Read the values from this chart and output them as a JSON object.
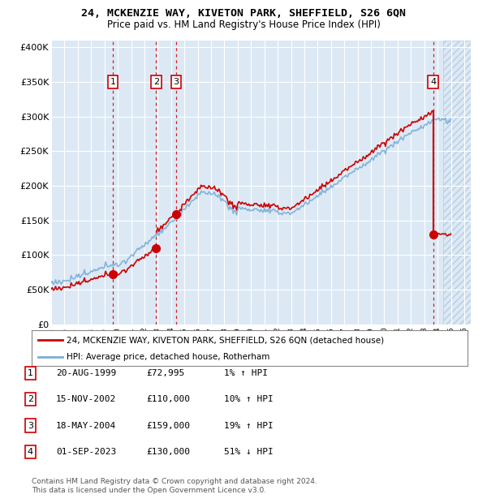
{
  "title": "24, MCKENZIE WAY, KIVETON PARK, SHEFFIELD, S26 6QN",
  "subtitle": "Price paid vs. HM Land Registry's House Price Index (HPI)",
  "background_color": "#dce9f5",
  "ylim": [
    0,
    410000
  ],
  "yticks": [
    0,
    50000,
    100000,
    150000,
    200000,
    250000,
    300000,
    350000,
    400000
  ],
  "ytick_labels": [
    "£0",
    "£50K",
    "£100K",
    "£150K",
    "£200K",
    "£250K",
    "£300K",
    "£350K",
    "£400K"
  ],
  "xlim_start": 1995.0,
  "xlim_end": 2026.5,
  "hatch_start": 2024.42,
  "transactions": [
    {
      "label": "1",
      "date_num": 1999.63,
      "price": 72995
    },
    {
      "label": "2",
      "date_num": 2002.88,
      "price": 110000
    },
    {
      "label": "3",
      "date_num": 2004.38,
      "price": 159000
    },
    {
      "label": "4",
      "date_num": 2023.67,
      "price": 130000
    }
  ],
  "legend_line1": "24, MCKENZIE WAY, KIVETON PARK, SHEFFIELD, S26 6QN (detached house)",
  "legend_line2": "HPI: Average price, detached house, Rotherham",
  "table_rows": [
    {
      "num": "1",
      "date": "20-AUG-1999",
      "price": "£72,995",
      "hpi": "1% ↑ HPI"
    },
    {
      "num": "2",
      "date": "15-NOV-2002",
      "price": "£110,000",
      "hpi": "10% ↑ HPI"
    },
    {
      "num": "3",
      "date": "18-MAY-2004",
      "price": "£159,000",
      "hpi": "19% ↑ HPI"
    },
    {
      "num": "4",
      "date": "01-SEP-2023",
      "price": "£130,000",
      "hpi": "51% ↓ HPI"
    }
  ],
  "footer": "Contains HM Land Registry data © Crown copyright and database right 2024.\nThis data is licensed under the Open Government Licence v3.0.",
  "red_color": "#cc0000",
  "blue_color": "#7aaed6",
  "marker_color": "#cc0000"
}
